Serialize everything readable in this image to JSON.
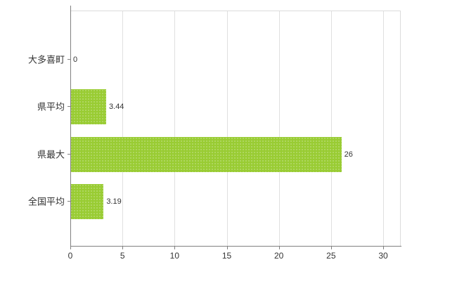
{
  "chart_data": {
    "type": "bar",
    "orientation": "horizontal",
    "title": "",
    "xlabel": "",
    "ylabel": "",
    "categories": [
      "大多喜町",
      "県平均",
      "県最大",
      "全国平均"
    ],
    "values": [
      0,
      3.44,
      26,
      3.19
    ],
    "value_labels": [
      "0",
      "3.44",
      "26",
      "3.19"
    ],
    "xlim": [
      0,
      30
    ],
    "x_ticks": [
      0,
      5,
      10,
      15,
      20,
      25,
      30
    ],
    "grid": "vertical",
    "legend": "none",
    "colors": {
      "bar": "#99cc33",
      "axis": "#808080",
      "grid": "#e0e0e0",
      "frame": "#dcdcdc",
      "text": "#333333",
      "background": "#ffffff"
    }
  }
}
